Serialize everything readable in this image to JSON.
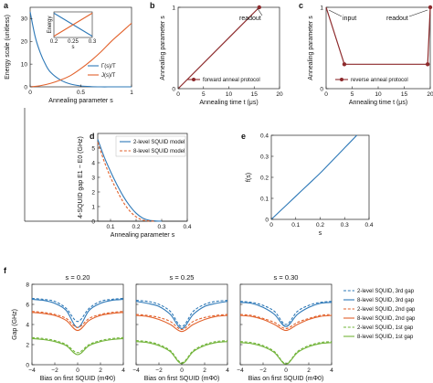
{
  "colors": {
    "blue": "#2d78b7",
    "orange": "#e2622c",
    "red": "#8d2a2c",
    "green": "#72b43a"
  },
  "panels": {
    "a": {
      "letter": "a",
      "xlabel": "Annealing parameter s",
      "ylabel": "Energy scale (unitless)",
      "xticks": [
        "0",
        "0.5",
        "1"
      ],
      "yticks": [
        "0",
        "10",
        "20",
        "30"
      ],
      "legend": [
        "Γ(s)/T",
        "J(s)/T"
      ],
      "inset": {
        "ylabel": "Energy",
        "xlabel": "s",
        "xticks": [
          "0.2",
          "0.25",
          "0.3"
        ]
      }
    },
    "b": {
      "letter": "b",
      "xlabel": "Annealing time t (μs)",
      "ylabel": "Annealing parameter s",
      "xticks": [
        "0",
        "5",
        "10",
        "15",
        "20"
      ],
      "yticks": [
        "0",
        "1"
      ],
      "annotation": "readout",
      "legend": "forward anneal protocol"
    },
    "c": {
      "letter": "c",
      "xlabel": "Annealing time t (μs)",
      "ylabel": "Annealing parameter s",
      "xticks": [
        "0",
        "5",
        "10",
        "15",
        "20"
      ],
      "yticks": [
        "0",
        "1"
      ],
      "annotations": [
        "input",
        "readout"
      ],
      "legend": "reverse anneal protocol"
    },
    "d": {
      "letter": "d",
      "xlabel": "Annealing parameter s",
      "ylabel": "4-SQUID gap E1 − E0 (GHz)",
      "xticks": [
        "0.1",
        "0.2",
        "0.3",
        "0.4"
      ],
      "yticks": [
        "0",
        "1",
        "2",
        "3",
        "4",
        "5"
      ],
      "legend": [
        "2-level SQUID model",
        "8-level SQUID model"
      ]
    },
    "e": {
      "letter": "e",
      "xlabel": "s",
      "ylabel": "f(s)",
      "xticks": [
        "0",
        "0.1",
        "0.2",
        "0.3",
        "0.4"
      ],
      "yticks": [
        "0",
        "0.1",
        "0.2",
        "0.3",
        "0.4"
      ]
    },
    "f": {
      "letter": "f",
      "titles": [
        "s = 0.20",
        "s = 0.25",
        "s = 0.30"
      ],
      "xlabel": "Bias on first SQUID (mΦ0)",
      "ylabel": "Gap (GHz)",
      "xticks": [
        "−4",
        "−2",
        "0",
        "2",
        "4"
      ],
      "yticks": [
        "0",
        "2",
        "4",
        "6",
        "8"
      ],
      "legend": [
        "2-level SQUID, 3rd gap",
        "8-level SQUID, 3rd gap",
        "2-level SQUID, 2nd gap",
        "8-level SQUID, 2nd gap",
        "2-level SQUID, 1st gap",
        "8-level SQUID, 1st gap"
      ]
    }
  },
  "chart_data": [
    {
      "panel": "a",
      "type": "line",
      "xlabel": "Annealing parameter s",
      "ylabel": "Energy scale (unitless)",
      "xlim": [
        0,
        1
      ],
      "ylim": [
        0,
        35
      ],
      "series": [
        {
          "name": "Γ(s)/T",
          "x": [
            0,
            0.05,
            0.1,
            0.15,
            0.2,
            0.3,
            0.4,
            0.5,
            0.6,
            0.7,
            0.8,
            0.9,
            1.0
          ],
          "y": [
            33,
            22,
            15,
            10,
            6.5,
            3,
            1.2,
            0.4,
            0.1,
            0,
            0,
            0,
            0
          ]
        },
        {
          "name": "J(s)/T",
          "x": [
            0,
            0.1,
            0.2,
            0.3,
            0.4,
            0.5,
            0.6,
            0.7,
            0.8,
            0.9,
            1.0
          ],
          "y": [
            0,
            0.5,
            1.5,
            3,
            5,
            8,
            11.5,
            15.5,
            20,
            24,
            28
          ]
        }
      ]
    },
    {
      "panel": "b",
      "type": "line",
      "xlabel": "Annealing time t (μs)",
      "ylabel": "Annealing parameter s",
      "xlim": [
        0,
        20
      ],
      "ylim": [
        0,
        1
      ],
      "series": [
        {
          "name": "forward anneal protocol",
          "x": [
            0,
            16
          ],
          "y": [
            0,
            1
          ]
        }
      ]
    },
    {
      "panel": "c",
      "type": "line",
      "xlabel": "Annealing time t (μs)",
      "ylabel": "Annealing parameter s",
      "xlim": [
        0,
        20
      ],
      "ylim": [
        0,
        1
      ],
      "series": [
        {
          "name": "reverse anneal protocol",
          "x": [
            0,
            3.5,
            19.5,
            20
          ],
          "y": [
            1,
            0.3,
            0.3,
            1
          ]
        }
      ]
    },
    {
      "panel": "d",
      "type": "line",
      "xlabel": "Annealing parameter s",
      "ylabel": "4-SQUID gap E1 − E0 (GHz)",
      "xlim": [
        0.05,
        0.4
      ],
      "ylim": [
        0,
        6
      ],
      "series": [
        {
          "name": "2-level SQUID model",
          "x": [
            0.05,
            0.075,
            0.1,
            0.125,
            0.15,
            0.175,
            0.2,
            0.225,
            0.25,
            0.275,
            0.3
          ],
          "y": [
            5.6,
            4.4,
            3.4,
            2.5,
            1.7,
            1.05,
            0.55,
            0.22,
            0.07,
            0.02,
            0
          ]
        },
        {
          "name": "8-level SQUID model",
          "x": [
            0.05,
            0.075,
            0.1,
            0.125,
            0.15,
            0.175,
            0.2,
            0.225,
            0.25,
            0.275
          ],
          "y": [
            5.4,
            4.1,
            3.0,
            2.1,
            1.3,
            0.7,
            0.3,
            0.08,
            0.02,
            0
          ]
        }
      ]
    },
    {
      "panel": "e",
      "type": "line",
      "xlabel": "s",
      "ylabel": "f(s)",
      "xlim": [
        0,
        0.4
      ],
      "ylim": [
        0,
        0.4
      ],
      "series": [
        {
          "name": "",
          "x": [
            0,
            0.05,
            0.1,
            0.15,
            0.2,
            0.25,
            0.3,
            0.35
          ],
          "y": [
            0,
            0.055,
            0.11,
            0.165,
            0.22,
            0.28,
            0.34,
            0.4
          ]
        }
      ]
    },
    {
      "panel": "f",
      "type": "line",
      "xlabel": "Bias on first SQUID (mΦ0)",
      "ylabel": "Gap (GHz)",
      "xlim": [
        -4,
        4
      ],
      "ylim": [
        0,
        8
      ],
      "subplots": [
        {
          "title": "s = 0.20",
          "x": [
            -4,
            -3,
            -2,
            -1,
            0,
            1,
            2,
            3,
            4
          ],
          "series": [
            {
              "name": "2-level SQUID, 3rd gap",
              "y": [
                6.6,
                6.5,
                6.3,
                5.6,
                4.3,
                5.6,
                6.3,
                6.5,
                6.6
              ]
            },
            {
              "name": "8-level SQUID, 3rd gap",
              "y": [
                6.5,
                6.4,
                6.1,
                5.4,
                3.7,
                5.4,
                6.1,
                6.4,
                6.5
              ]
            },
            {
              "name": "2-level SQUID, 2nd gap",
              "y": [
                5.3,
                5.2,
                5.0,
                4.6,
                3.7,
                4.6,
                5.0,
                5.2,
                5.3
              ]
            },
            {
              "name": "8-level SQUID, 2nd gap",
              "y": [
                5.2,
                5.1,
                4.9,
                4.4,
                3.4,
                4.4,
                4.9,
                5.1,
                5.2
              ]
            },
            {
              "name": "2-level SQUID, 1st gap",
              "y": [
                2.7,
                2.6,
                2.4,
                2.0,
                1.2,
                2.0,
                2.4,
                2.6,
                2.7
              ]
            },
            {
              "name": "8-level SQUID, 1st gap",
              "y": [
                2.6,
                2.5,
                2.3,
                1.9,
                1.0,
                1.9,
                2.3,
                2.5,
                2.6
              ]
            }
          ]
        },
        {
          "title": "s = 0.25",
          "x": [
            -4,
            -3,
            -2,
            -1,
            0,
            1,
            2,
            3,
            4
          ],
          "series": [
            {
              "name": "2-level SQUID, 3rd gap",
              "y": [
                6.4,
                6.3,
                6.0,
                5.3,
                3.8,
                5.3,
                6.0,
                6.3,
                6.4
              ]
            },
            {
              "name": "8-level SQUID, 3rd gap",
              "y": [
                6.3,
                6.1,
                5.8,
                5.0,
                3.6,
                5.0,
                5.8,
                6.1,
                6.3
              ]
            },
            {
              "name": "2-level SQUID, 2nd gap",
              "y": [
                5.0,
                4.9,
                4.7,
                4.3,
                3.5,
                4.3,
                4.7,
                4.9,
                5.0
              ]
            },
            {
              "name": "8-level SQUID, 2nd gap",
              "y": [
                4.9,
                4.8,
                4.5,
                4.0,
                3.3,
                4.0,
                4.5,
                4.8,
                4.9
              ]
            },
            {
              "name": "2-level SQUID, 1st gap",
              "y": [
                2.4,
                2.3,
                2.0,
                1.4,
                0.2,
                1.4,
                2.0,
                2.3,
                2.4
              ]
            },
            {
              "name": "8-level SQUID, 1st gap",
              "y": [
                2.3,
                2.2,
                1.9,
                1.3,
                0.1,
                1.3,
                1.9,
                2.2,
                2.3
              ]
            }
          ]
        },
        {
          "title": "s = 0.30",
          "x": [
            -4,
            -3,
            -2,
            -1,
            0,
            1,
            2,
            3,
            4
          ],
          "series": [
            {
              "name": "2-level SQUID, 3rd gap",
              "y": [
                6.3,
                6.2,
                5.9,
                5.3,
                4.0,
                5.3,
                5.9,
                6.2,
                6.3
              ]
            },
            {
              "name": "8-level SQUID, 3rd gap",
              "y": [
                6.2,
                6.1,
                5.7,
                5.0,
                3.8,
                5.0,
                5.7,
                6.1,
                6.2
              ]
            },
            {
              "name": "2-level SQUID, 2nd gap",
              "y": [
                5.0,
                4.9,
                4.6,
                4.2,
                3.6,
                4.2,
                4.6,
                4.9,
                5.0
              ]
            },
            {
              "name": "8-level SQUID, 2nd gap",
              "y": [
                4.9,
                4.8,
                4.5,
                4.0,
                3.4,
                4.0,
                4.5,
                4.8,
                4.9
              ]
            },
            {
              "name": "2-level SQUID, 1st gap",
              "y": [
                2.3,
                2.2,
                1.9,
                1.3,
                0.1,
                1.3,
                1.9,
                2.2,
                2.3
              ]
            },
            {
              "name": "8-level SQUID, 1st gap",
              "y": [
                2.2,
                2.1,
                1.8,
                1.2,
                0.05,
                1.2,
                1.8,
                2.1,
                2.2
              ]
            }
          ]
        }
      ]
    }
  ]
}
